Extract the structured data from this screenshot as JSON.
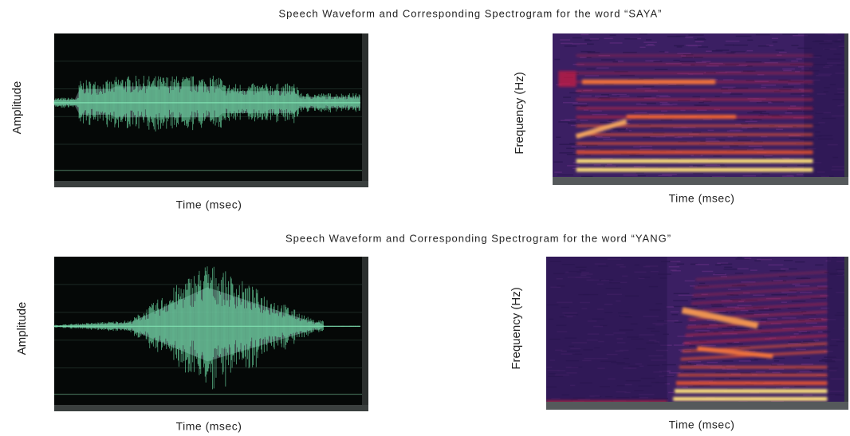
{
  "panels": [
    {
      "title": "Speech Waveform and Corresponding Spectrogram for the word “SAYA”",
      "waveform": {
        "y_label": "Amplitude",
        "x_label": "Time (msec)"
      },
      "spectrogram": {
        "y_label": "Frequency (Hz)",
        "x_label": "Time (msec)"
      }
    },
    {
      "title": "Speech Waveform and Corresponding Spectrogram for the word “YANG”",
      "waveform": {
        "y_label": "Amplitude",
        "x_label": "Time (msec)"
      },
      "spectrogram": {
        "y_label": "Frequency (Hz)",
        "x_label": "Time (msec)"
      }
    }
  ]
}
